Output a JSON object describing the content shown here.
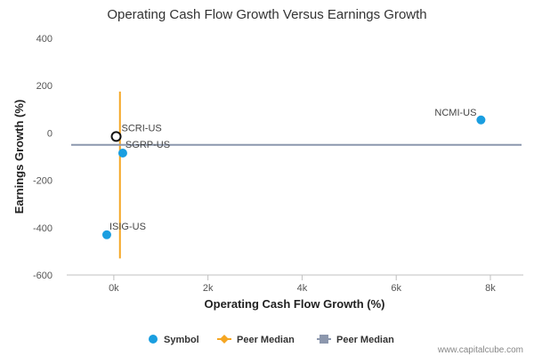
{
  "chart_data": {
    "type": "scatter",
    "title": "Operating Cash Flow Growth Versus Earnings Growth",
    "xlabel": "Operating Cash Flow Growth (%)",
    "ylabel": "Earnings Growth (%)",
    "xlim": [
      -1000,
      8700
    ],
    "ylim": [
      -600,
      400
    ],
    "x_ticks": [
      0,
      2000,
      4000,
      6000,
      8000
    ],
    "x_tick_labels": [
      "0k",
      "2k",
      "4k",
      "6k",
      "8k"
    ],
    "y_ticks": [
      400,
      200,
      0,
      -200,
      -400,
      -600
    ],
    "y_tick_labels": [
      "400",
      "200",
      "0",
      "-200",
      "-400",
      "-600"
    ],
    "grid": false,
    "legend_position": "bottom",
    "series": [
      {
        "name": "Symbol",
        "color": "#1a9ee0",
        "points": [
          {
            "label": "NCMI-US",
            "x": 7800,
            "y": 55
          },
          {
            "label": "SGRP-US",
            "x": 190,
            "y": -85
          },
          {
            "label": "ISIG-US",
            "x": -150,
            "y": -430
          }
        ]
      }
    ],
    "highlight_point": {
      "label": "SCRI-US",
      "x": 50,
      "y": -15
    },
    "peer_median_lines": [
      {
        "name": "Peer Median",
        "color": "#f5a623",
        "orientation": "vertical",
        "x": 130,
        "y_from": -530,
        "y_to": 175
      },
      {
        "name": "Peer Median",
        "color": "#8c97ad",
        "orientation": "horizontal",
        "y": -50
      }
    ],
    "legend": [
      {
        "name": "Symbol",
        "marker": "circle",
        "color": "#1a9ee0"
      },
      {
        "name": "Peer Median",
        "marker": "line-diamond",
        "color": "#f5a623"
      },
      {
        "name": "Peer Median",
        "marker": "line-square",
        "color": "#8c97ad"
      }
    ]
  },
  "credit": "www.capitalcube.com"
}
